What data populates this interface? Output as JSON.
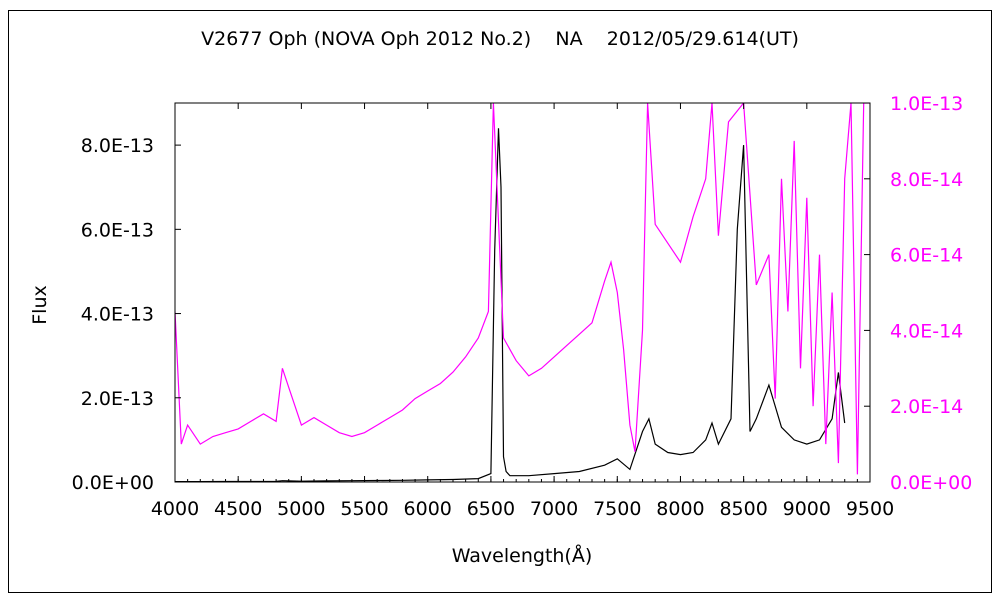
{
  "chart_data": {
    "type": "line",
    "title": "V2677 Oph (NOVA Oph 2012 No.2)    NA    2012/05/29.614(UT)",
    "xlabel": "Wavelength(Å)",
    "ylabel": "Flux",
    "xlim": [
      4000,
      9500
    ],
    "ylim_left": [
      0,
      9e-13
    ],
    "ylim_right": [
      0,
      1e-13
    ],
    "grid": false,
    "x_ticks": [
      4000,
      4500,
      5000,
      5500,
      6000,
      6500,
      7000,
      7500,
      8000,
      8500,
      9000,
      9500
    ],
    "x_tick_labels": [
      "4000",
      "4500",
      "5000",
      "5500",
      "6000",
      "6500",
      "7000",
      "7500",
      "8000",
      "8500",
      "9000",
      "9500"
    ],
    "y_left_ticks": [
      0,
      2e-13,
      4e-13,
      6e-13,
      8e-13
    ],
    "y_left_tick_labels": [
      "0.0E+00",
      "2.0E-13",
      "4.0E-13",
      "6.0E-13",
      "8.0E-13"
    ],
    "y_right_ticks": [
      0,
      2e-14,
      4e-14,
      6e-14,
      8e-14,
      1e-13
    ],
    "y_right_tick_labels": [
      "0.0E+00",
      "2.0E-14",
      "4.0E-14",
      "6.0E-14",
      "8.0E-14",
      "1.0E-13"
    ],
    "series": [
      {
        "axis": "left",
        "color": "#000000",
        "x": [
          4000,
          4200,
          4400,
          4600,
          4800,
          4850,
          4900,
          5000,
          5200,
          5400,
          5600,
          5800,
          6000,
          6200,
          6400,
          6500,
          6530,
          6560,
          6580,
          6600,
          6620,
          6650,
          6800,
          7000,
          7200,
          7400,
          7500,
          7600,
          7700,
          7750,
          7800,
          7900,
          8000,
          8100,
          8200,
          8250,
          8300,
          8400,
          8450,
          8500,
          8550,
          8600,
          8650,
          8700,
          8800,
          8900,
          9000,
          9100,
          9200,
          9250,
          9300
        ],
        "y": [
          1e-15,
          1e-15,
          1.2e-15,
          1.2e-15,
          1.5e-15,
          3e-15,
          2.5e-15,
          2e-15,
          2.5e-15,
          3e-15,
          3.5e-15,
          4e-15,
          5e-15,
          6e-15,
          8e-15,
          2e-14,
          5.5e-13,
          8.4e-13,
          7e-13,
          6e-14,
          2.5e-14,
          1.5e-14,
          1.5e-14,
          2e-14,
          2.5e-14,
          4e-14,
          5.5e-14,
          3e-14,
          1.2e-13,
          1.5e-13,
          9e-14,
          7e-14,
          6.5e-14,
          7e-14,
          1e-13,
          1.4e-13,
          9e-14,
          1.5e-13,
          6e-13,
          8e-13,
          1.2e-13,
          1.5e-13,
          1.9e-13,
          2.3e-13,
          1.3e-13,
          1e-13,
          9e-14,
          1e-13,
          1.5e-13,
          2.6e-13,
          1.4e-13
        ]
      },
      {
        "axis": "right",
        "color": "#ff00ff",
        "x": [
          4000,
          4050,
          4100,
          4200,
          4300,
          4400,
          4500,
          4600,
          4700,
          4800,
          4850,
          4900,
          5000,
          5100,
          5200,
          5300,
          5400,
          5500,
          5600,
          5700,
          5800,
          5900,
          6000,
          6100,
          6200,
          6300,
          6400,
          6480,
          6520,
          6600,
          6650,
          6700,
          6800,
          6900,
          7000,
          7100,
          7200,
          7300,
          7400,
          7450,
          7500,
          7550,
          7600,
          7640,
          7700,
          7740,
          7800,
          7900,
          8000,
          8100,
          8150,
          8200,
          8250,
          8300,
          8380,
          8500,
          8600,
          8700,
          8750,
          8800,
          8850,
          8900,
          8950,
          9000,
          9050,
          9100,
          9150,
          9200,
          9250,
          9300,
          9350,
          9400,
          9450,
          9500
        ],
        "y": [
          4.5e-14,
          1e-14,
          1.5e-14,
          1e-14,
          1.2e-14,
          1.3e-14,
          1.4e-14,
          1.6e-14,
          1.8e-14,
          1.6e-14,
          3e-14,
          2.5e-14,
          1.5e-14,
          1.7e-14,
          1.5e-14,
          1.3e-14,
          1.2e-14,
          1.3e-14,
          1.5e-14,
          1.7e-14,
          1.9e-14,
          2.2e-14,
          2.4e-14,
          2.6e-14,
          2.9e-14,
          3.3e-14,
          3.8e-14,
          4.5e-14,
          1e-13,
          3.8e-14,
          3.5e-14,
          3.2e-14,
          2.8e-14,
          3e-14,
          3.3e-14,
          3.6e-14,
          3.9e-14,
          4.2e-14,
          5.3e-14,
          5.8e-14,
          5e-14,
          3.5e-14,
          1.5e-14,
          8e-15,
          4e-14,
          1e-13,
          6.8e-14,
          6.3e-14,
          5.8e-14,
          7e-14,
          7.5e-14,
          8e-14,
          1e-13,
          6.5e-14,
          9.5e-14,
          1e-13,
          5.2e-14,
          6e-14,
          2.2e-14,
          8e-14,
          4.5e-14,
          9e-14,
          3e-14,
          7.5e-14,
          2e-14,
          6e-14,
          1e-14,
          5e-14,
          5e-15,
          8e-14,
          1e-13,
          2e-15,
          1e-13,
          1e-13
        ]
      }
    ]
  },
  "colors": {
    "left_axis_text": "#000000",
    "right_axis_text": "#ff00ff",
    "frame": "#000000"
  }
}
